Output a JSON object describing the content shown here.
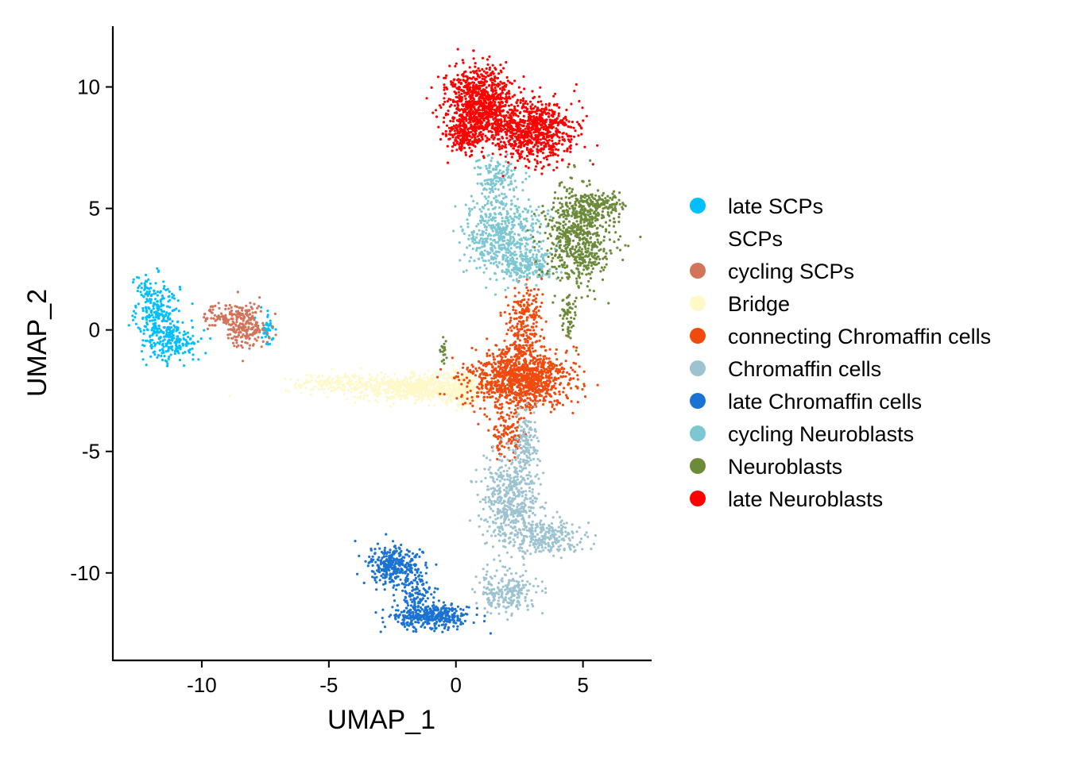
{
  "chart_data": {
    "type": "scatter",
    "title": "",
    "xlabel": "UMAP_1",
    "ylabel": "UMAP_2",
    "xlim": [
      -13.5,
      7.7
    ],
    "ylim": [
      -13.6,
      12.5
    ],
    "xticks": [
      -10,
      -5,
      0,
      5
    ],
    "xtick_labels": [
      "-10",
      "-5",
      "0",
      "5"
    ],
    "yticks": [
      -10,
      -5,
      0,
      5,
      10
    ],
    "ytick_labels": [
      "-10",
      "-5",
      "0",
      "5",
      "10"
    ],
    "grid": false,
    "legend_position": "right",
    "series": [
      {
        "name": "late SCPs",
        "color": "#00BFFF",
        "clusters": [
          {
            "cx": -11.7,
            "cy": 0.5,
            "sx": 0.55,
            "sy": 1.0,
            "n": 260
          },
          {
            "cx": -11.0,
            "cy": -0.5,
            "sx": 0.7,
            "sy": 0.6,
            "n": 140
          },
          {
            "cx": -12.2,
            "cy": 1.6,
            "sx": 0.25,
            "sy": 0.4,
            "n": 40
          },
          {
            "cx": -7.4,
            "cy": 0.1,
            "sx": 0.25,
            "sy": 0.5,
            "n": 40
          }
        ]
      },
      {
        "name": "SCPs",
        "color": "#FFFFFF",
        "clusters": []
      },
      {
        "name": "cycling SCPs",
        "color": "#D2735A",
        "clusters": [
          {
            "cx": -8.3,
            "cy": 0.2,
            "sx": 0.55,
            "sy": 0.6,
            "n": 220
          },
          {
            "cx": -9.3,
            "cy": 0.6,
            "sx": 0.4,
            "sy": 0.3,
            "n": 60
          }
        ]
      },
      {
        "name": "Bridge",
        "color": "#FFF8C8",
        "clusters": [
          {
            "cx": -1.5,
            "cy": -2.4,
            "sx": 1.5,
            "sy": 0.35,
            "n": 550
          },
          {
            "cx": -4.5,
            "cy": -2.2,
            "sx": 1.5,
            "sy": 0.25,
            "n": 180
          },
          {
            "cx": 0.2,
            "cy": -2.4,
            "sx": 0.7,
            "sy": 0.5,
            "n": 240
          }
        ]
      },
      {
        "name": "connecting Chromaffin cells",
        "color": "#F04A0F",
        "clusters": [
          {
            "cx": 2.5,
            "cy": -2.0,
            "sx": 1.3,
            "sy": 0.85,
            "n": 1100
          },
          {
            "cx": 2.7,
            "cy": 0.3,
            "sx": 0.45,
            "sy": 1.1,
            "n": 220
          },
          {
            "cx": 2.0,
            "cy": -4.3,
            "sx": 0.45,
            "sy": 0.6,
            "n": 110
          }
        ]
      },
      {
        "name": "Chromaffin cells",
        "color": "#9DC3D0",
        "clusters": [
          {
            "cx": 2.2,
            "cy": -7.0,
            "sx": 0.75,
            "sy": 1.2,
            "n": 520
          },
          {
            "cx": 3.7,
            "cy": -8.5,
            "sx": 0.9,
            "sy": 0.45,
            "n": 230
          },
          {
            "cx": 2.0,
            "cy": -10.8,
            "sx": 0.8,
            "sy": 0.55,
            "n": 230
          },
          {
            "cx": 2.8,
            "cy": -4.6,
            "sx": 0.35,
            "sy": 0.8,
            "n": 120
          }
        ]
      },
      {
        "name": "late Chromaffin cells",
        "color": "#1A73D2",
        "clusters": [
          {
            "cx": -2.4,
            "cy": -9.7,
            "sx": 0.7,
            "sy": 0.55,
            "n": 330
          },
          {
            "cx": -1.0,
            "cy": -11.8,
            "sx": 1.0,
            "sy": 0.35,
            "n": 380
          },
          {
            "cx": -1.5,
            "cy": -10.9,
            "sx": 0.4,
            "sy": 0.35,
            "n": 80
          }
        ]
      },
      {
        "name": "cycling Neuroblasts",
        "color": "#7CC7D2",
        "clusters": [
          {
            "cx": 1.8,
            "cy": 3.9,
            "sx": 1.0,
            "sy": 1.1,
            "n": 520
          },
          {
            "cx": 1.6,
            "cy": 6.2,
            "sx": 0.6,
            "sy": 0.6,
            "n": 140
          },
          {
            "cx": 2.7,
            "cy": 2.6,
            "sx": 0.8,
            "sy": 0.4,
            "n": 180
          }
        ]
      },
      {
        "name": "Neuroblasts",
        "color": "#6B8B3A",
        "clusters": [
          {
            "cx": 4.8,
            "cy": 3.8,
            "sx": 0.9,
            "sy": 1.3,
            "n": 620
          },
          {
            "cx": 5.5,
            "cy": 5.1,
            "sx": 0.8,
            "sy": 0.35,
            "n": 160
          },
          {
            "cx": 4.4,
            "cy": 0.6,
            "sx": 0.2,
            "sy": 0.7,
            "n": 60
          },
          {
            "cx": -0.5,
            "cy": -0.8,
            "sx": 0.08,
            "sy": 0.35,
            "n": 20
          }
        ]
      },
      {
        "name": "late Neuroblasts",
        "color": "#FF0000",
        "clusters": [
          {
            "cx": 0.9,
            "cy": 9.3,
            "sx": 0.9,
            "sy": 1.0,
            "n": 900
          },
          {
            "cx": 3.0,
            "cy": 8.2,
            "sx": 1.1,
            "sy": 0.85,
            "n": 750
          },
          {
            "cx": 0.3,
            "cy": 7.9,
            "sx": 0.5,
            "sy": 0.4,
            "n": 150
          }
        ]
      }
    ]
  }
}
